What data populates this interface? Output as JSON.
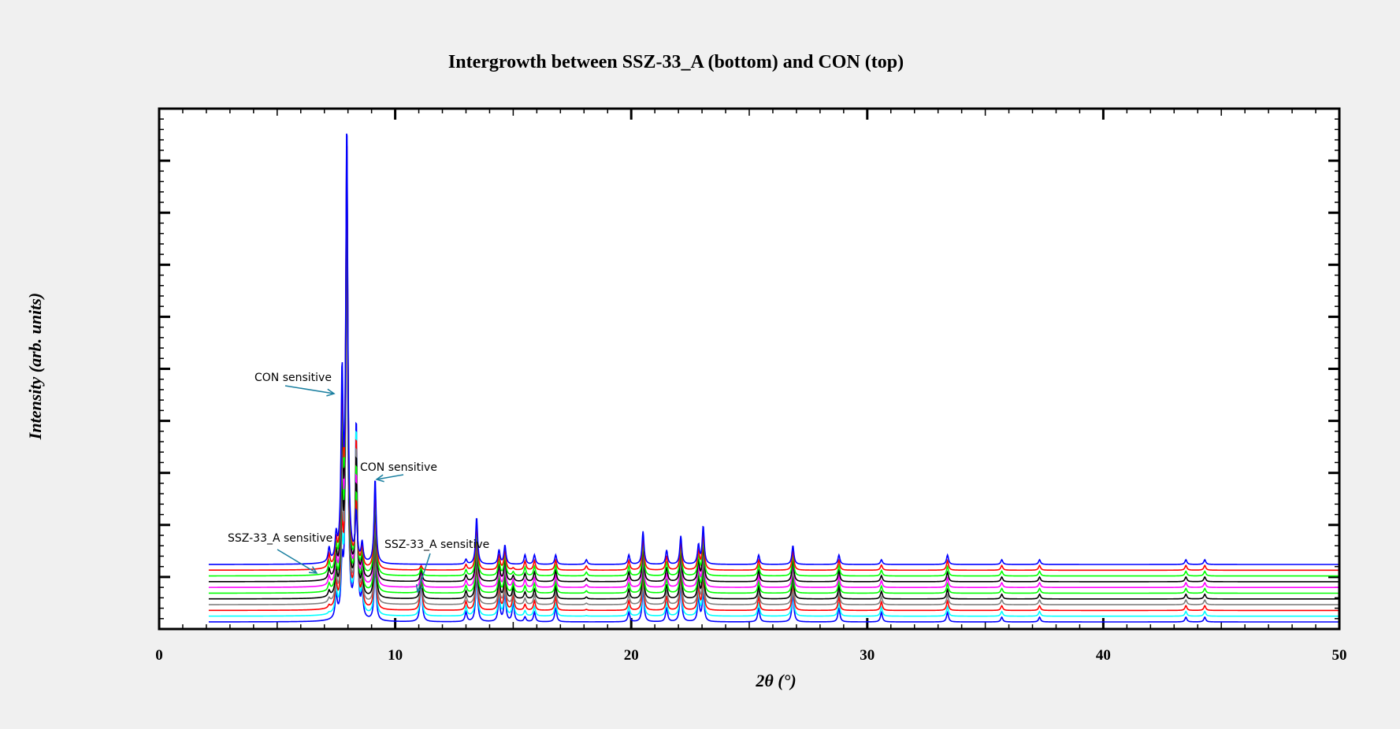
{
  "chart_data": {
    "type": "line",
    "title": "Intergrowth between SSZ-33_A (bottom) and CON (top)",
    "xlabel": "2θ (°)",
    "ylabel": "Intensity (arb. units)",
    "xlim": [
      0,
      50
    ],
    "x_ticks": [
      "0",
      "10",
      "20",
      "30",
      "40",
      "50"
    ],
    "y_tick_labels_shown": false,
    "grid": false,
    "x_range_of_data": [
      2.1,
      50
    ],
    "series_order": "bottom to top, each pattern vertically offset",
    "series": [
      {
        "color": "#0000ff",
        "offset": 0
      },
      {
        "color": "#00ffff",
        "offset": 1
      },
      {
        "color": "#ff0000",
        "offset": 2
      },
      {
        "color": "#808080",
        "offset": 3
      },
      {
        "color": "#000000",
        "offset": 4
      },
      {
        "color": "#00ff00",
        "offset": 5
      },
      {
        "color": "#ff00ff",
        "offset": 6
      },
      {
        "color": "#000000",
        "offset": 7
      },
      {
        "color": "#00ff00",
        "offset": 8
      },
      {
        "color": "#ff0000",
        "offset": 9
      },
      {
        "color": "#0000ff",
        "offset": 10
      }
    ],
    "peaks_2theta": [
      {
        "x": 7.2,
        "bottom": 0.0,
        "top": 0.03
      },
      {
        "x": 7.5,
        "bottom": 0.05,
        "top": 0.05
      },
      {
        "x": 7.75,
        "bottom": 0.1,
        "top": 0.38
      },
      {
        "x": 7.95,
        "bottom": 0.82,
        "top": 0.92
      },
      {
        "x": 8.35,
        "bottom": 0.42,
        "top": 0.1
      },
      {
        "x": 8.6,
        "bottom": 0.05,
        "top": 0.04
      },
      {
        "x": 9.15,
        "bottom": 0.12,
        "top": 0.18
      },
      {
        "x": 11.1,
        "bottom": 0.09,
        "top": 0.0
      },
      {
        "x": 13.0,
        "bottom": 0.02,
        "top": 0.01
      },
      {
        "x": 13.45,
        "bottom": 0.1,
        "top": 0.1
      },
      {
        "x": 14.4,
        "bottom": 0.05,
        "top": 0.03
      },
      {
        "x": 14.65,
        "bottom": 0.06,
        "top": 0.04
      },
      {
        "x": 15.0,
        "bottom": 0.04,
        "top": 0.0
      },
      {
        "x": 15.5,
        "bottom": 0.01,
        "top": 0.02
      },
      {
        "x": 15.9,
        "bottom": 0.02,
        "top": 0.02
      },
      {
        "x": 16.8,
        "bottom": 0.03,
        "top": 0.02
      },
      {
        "x": 18.1,
        "bottom": 0.0,
        "top": 0.01
      },
      {
        "x": 19.9,
        "bottom": 0.02,
        "top": 0.02
      },
      {
        "x": 20.5,
        "bottom": 0.07,
        "top": 0.07
      },
      {
        "x": 21.5,
        "bottom": 0.03,
        "top": 0.03
      },
      {
        "x": 22.1,
        "bottom": 0.08,
        "top": 0.06
      },
      {
        "x": 22.85,
        "bottom": 0.05,
        "top": 0.04
      },
      {
        "x": 23.05,
        "bottom": 0.06,
        "top": 0.08
      },
      {
        "x": 25.4,
        "bottom": 0.03,
        "top": 0.02
      },
      {
        "x": 26.85,
        "bottom": 0.06,
        "top": 0.04
      },
      {
        "x": 28.8,
        "bottom": 0.03,
        "top": 0.02
      },
      {
        "x": 30.6,
        "bottom": 0.02,
        "top": 0.01
      },
      {
        "x": 33.4,
        "bottom": 0.02,
        "top": 0.02
      },
      {
        "x": 35.7,
        "bottom": 0.01,
        "top": 0.01
      },
      {
        "x": 37.3,
        "bottom": 0.01,
        "top": 0.01
      },
      {
        "x": 43.5,
        "bottom": 0.01,
        "top": 0.01
      },
      {
        "x": 44.3,
        "bottom": 0.01,
        "top": 0.01
      }
    ],
    "annotations": [
      {
        "text": "CON sensitive",
        "x": 7.75
      },
      {
        "text": "CON sensitive",
        "x": 9.15
      },
      {
        "text": "SSZ-33_A sensitive",
        "x": 6.7
      },
      {
        "text": "SSZ-33_A sensitive",
        "x": 11.1
      }
    ]
  }
}
